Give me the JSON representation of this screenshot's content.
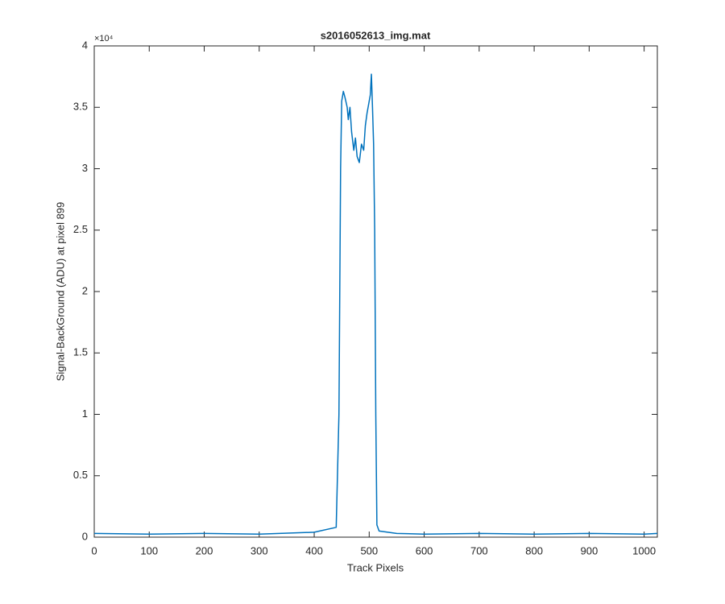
{
  "chart_data": {
    "type": "line",
    "title": "s2016052613_img.mat",
    "x_label": "Track Pixels",
    "y_label": "Signal-BackGround (ADU) at pixel 899",
    "y_multiplier": "×10⁴",
    "x": [
      0,
      100,
      200,
      300,
      400,
      440,
      445,
      448,
      450,
      453,
      456,
      460,
      462,
      465,
      468,
      472,
      475,
      478,
      482,
      486,
      490,
      493,
      496,
      500,
      502,
      504,
      506,
      508,
      510,
      512,
      514,
      518,
      550,
      600,
      700,
      800,
      900,
      1000,
      1024
    ],
    "series": [
      {
        "name": "signal",
        "color": "#0072bd",
        "values": [
          300,
          250,
          300,
          250,
          400,
          800,
          10000,
          30000,
          35500,
          36300,
          35800,
          35000,
          34000,
          35000,
          33000,
          31500,
          32500,
          31000,
          30500,
          32000,
          31500,
          33500,
          34500,
          35500,
          36000,
          37700,
          35000,
          32000,
          25000,
          10000,
          1000,
          500,
          300,
          250,
          300,
          250,
          300,
          250,
          300
        ]
      }
    ],
    "xlim": [
      0,
      1024
    ],
    "xticks": [
      0,
      100,
      200,
      300,
      400,
      500,
      600,
      700,
      800,
      900,
      1000
    ],
    "ylim": [
      0,
      40000
    ],
    "yticks": [
      0,
      {
        "value": 5000,
        "label": "0.5"
      },
      {
        "value": 10000,
        "label": "1"
      },
      {
        "value": 15000,
        "label": "1.5"
      },
      {
        "value": 20000,
        "label": "2"
      },
      {
        "value": 25000,
        "label": "2.5"
      },
      {
        "value": 30000,
        "label": "3"
      },
      {
        "value": 35000,
        "label": "3.5"
      },
      {
        "value": 40000,
        "label": "4"
      }
    ],
    "grid": false
  }
}
